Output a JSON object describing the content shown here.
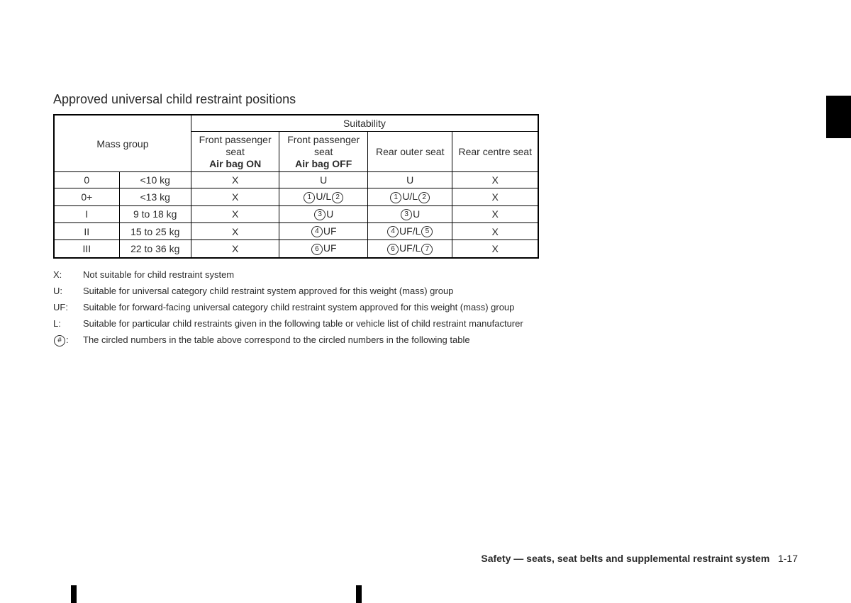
{
  "title": "Approved universal child restraint positions",
  "table": {
    "header": {
      "mass_group": "Mass group",
      "suitability": "Suitability",
      "col_fp_on_l1": "Front passenger",
      "col_fp_on_l2": "seat",
      "col_fp_on_l3": "Air bag ON",
      "col_fp_off_l1": "Front passenger",
      "col_fp_off_l2": "seat",
      "col_fp_off_l3": "Air bag OFF",
      "col_rear_outer": "Rear outer seat",
      "col_rear_centre": "Rear centre seat"
    },
    "rows": [
      {
        "grp": "0",
        "wt": "<10 kg",
        "c1": "X",
        "c2": [
          {
            "t": "U"
          }
        ],
        "c3": [
          {
            "t": "U"
          }
        ],
        "c4": "X"
      },
      {
        "grp": "0+",
        "wt": "<13 kg",
        "c1": "X",
        "c2": [
          {
            "n": "1"
          },
          {
            "t": "U/L"
          },
          {
            "n": "2"
          }
        ],
        "c3": [
          {
            "n": "1"
          },
          {
            "t": "U/L"
          },
          {
            "n": "2"
          }
        ],
        "c4": "X"
      },
      {
        "grp": "I",
        "wt": "9 to 18 kg",
        "c1": "X",
        "c2": [
          {
            "n": "3"
          },
          {
            "t": "U"
          }
        ],
        "c3": [
          {
            "n": "3"
          },
          {
            "t": "U"
          }
        ],
        "c4": "X"
      },
      {
        "grp": "II",
        "wt": "15 to 25 kg",
        "c1": "X",
        "c2": [
          {
            "n": "4"
          },
          {
            "t": "UF"
          }
        ],
        "c3": [
          {
            "n": "4"
          },
          {
            "t": "UF/L"
          },
          {
            "n": "5"
          }
        ],
        "c4": "X"
      },
      {
        "grp": "III",
        "wt": "22 to 36 kg",
        "c1": "X",
        "c2": [
          {
            "n": "6"
          },
          {
            "t": "UF"
          }
        ],
        "c3": [
          {
            "n": "6"
          },
          {
            "t": "UF/L"
          },
          {
            "n": "7"
          }
        ],
        "c4": "X"
      }
    ]
  },
  "legend": [
    {
      "key": "X:",
      "text": "Not suitable for child restraint system"
    },
    {
      "key": "U:",
      "text": "Suitable for universal category child restraint system approved for this weight (mass) group"
    },
    {
      "key": "UF:",
      "text": "Suitable for forward-facing universal category child restraint system approved for this weight (mass) group"
    },
    {
      "key": "L:",
      "text": "Suitable for particular child restraints given in the following table or vehicle list of child restraint manufacturer"
    },
    {
      "key": "#",
      "key_display": "circled_hash",
      "text": "The circled numbers in the table above correspond to the circled numbers in the following table"
    }
  ],
  "footer": {
    "section": "Safety — seats, seat belts and supplemental restraint system",
    "page": "1-17"
  },
  "crop_marks_x": [
    100,
    502
  ],
  "colors": {
    "text": "#2b2b2b",
    "border": "#000000",
    "background": "#ffffff"
  }
}
